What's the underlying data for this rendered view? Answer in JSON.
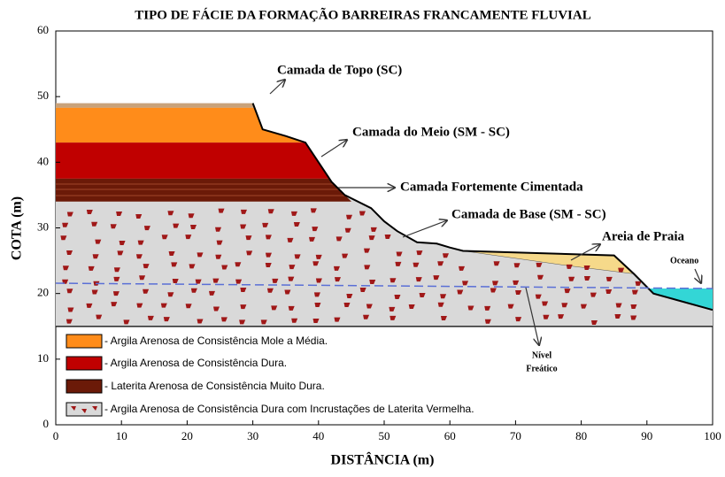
{
  "title": "TIPO DE FÁCIE DA FORMAÇÃO BARREIRAS FRANCAMENTE FLUVIAL",
  "x_axis": {
    "label": "DISTÂNCIA (m)",
    "range": [
      0,
      100
    ],
    "ticks": [
      0,
      10,
      20,
      30,
      40,
      50,
      60,
      70,
      80,
      90,
      100
    ]
  },
  "y_axis": {
    "label": "COTA (m)",
    "range": [
      0,
      60
    ],
    "ticks": [
      0,
      10,
      20,
      30,
      40,
      50,
      60
    ]
  },
  "annotations": {
    "top_layer": "Camada de Topo (SC)",
    "middle_layer": "Camada do Meio (SM - SC)",
    "cemented_layer": "Camada Fortemente Cimentada",
    "base_layer": "Camada de Base (SM - SC)",
    "beach_sand": "Areia de Praia",
    "ocean": "Oceano",
    "water_table": [
      "Nível",
      "Freático"
    ]
  },
  "legend": [
    "- Argila Arenosa de Consistência Mole a Média.",
    "- Argila Arenosa de Consistência Dura.",
    "- Laterita Arenosa de Consistência Muito Dura.",
    "- Argila Arenosa de Consistência Dura com Incrustações  de Laterita Vermelha."
  ]
}
